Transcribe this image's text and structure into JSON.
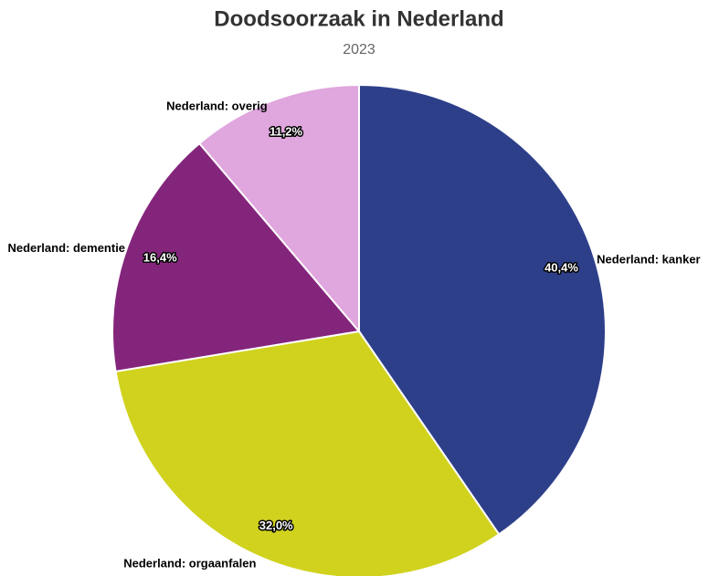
{
  "chart_data": {
    "type": "pie",
    "title": "Doodsoorzaak in Nederland",
    "subtitle": "2023",
    "categories": [
      "Nederland: kanker",
      "Nederland: orgaanfalen",
      "Nederland: dementie",
      "Nederland: overig"
    ],
    "values": [
      40.4,
      32.0,
      16.4,
      11.2
    ],
    "value_labels": [
      "40,4%",
      "32,0%",
      "16,4%",
      "11,2%"
    ],
    "colors": [
      "#2e3f8a",
      "#d0d21e",
      "#84257c",
      "#e0a6de"
    ]
  }
}
